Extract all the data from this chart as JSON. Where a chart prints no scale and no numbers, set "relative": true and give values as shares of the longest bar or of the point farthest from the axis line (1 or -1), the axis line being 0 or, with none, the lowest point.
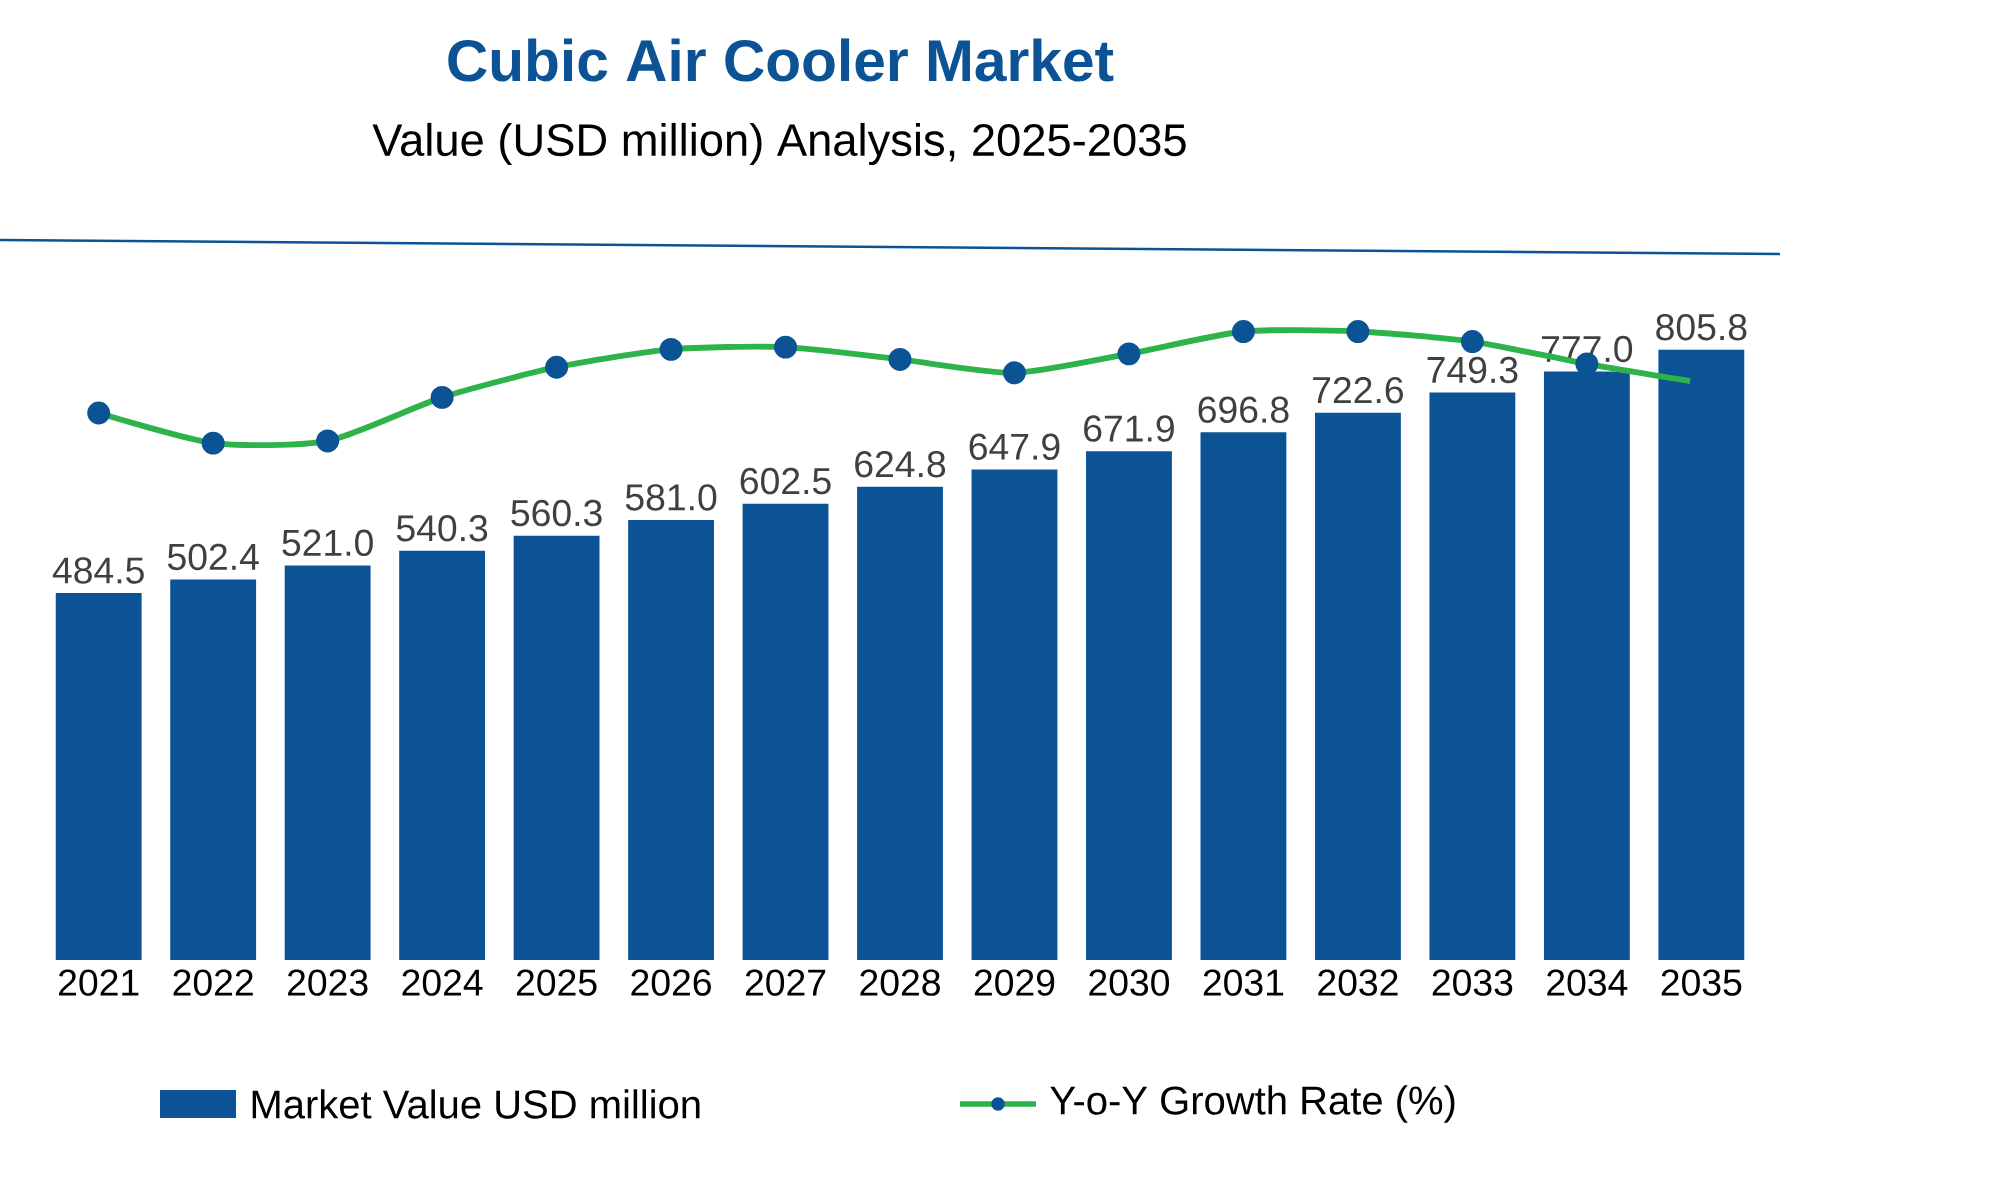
{
  "chart_data": [
    {
      "type": "bar",
      "title": "Cubic Air Cooler Market",
      "subtitle": "Value (USD million) Analysis, 2025-2035",
      "categories": [
        "2021",
        "2022",
        "2023",
        "2024",
        "2025",
        "2026",
        "2027",
        "2028",
        "2029",
        "2030",
        "2031",
        "2032",
        "2033",
        "2034",
        "2035"
      ],
      "series": [
        {
          "name": "Market Value USD million",
          "color": "#0b5394",
          "values": [
            484.5,
            502.4,
            521.0,
            540.3,
            560.3,
            581.0,
            602.5,
            624.8,
            647.9,
            671.9,
            696.8,
            722.6,
            749.3,
            777.0,
            805.8
          ],
          "value_labels": [
            "484.5",
            "502.4",
            "521.0",
            "540.3",
            "560.3",
            "581.0",
            "602.5",
            "624.8",
            "647.9",
            "671.9",
            "696.8",
            "722.6",
            "749.3",
            "777.0",
            "805.8"
          ]
        }
      ],
      "legend": "bottom",
      "tick_labels": "x"
    },
    {
      "type": "line",
      "relative": true,
      "marker": "circle",
      "legend": "bottom",
      "tick_labels": false,
      "categories": [
        null,
        null,
        null,
        null,
        null,
        null,
        null,
        null,
        null,
        null,
        null,
        null,
        null,
        null,
        null
      ],
      "series": [
        {
          "name": "Y-o-Y Growth Rate (%)",
          "color": "#2db34a",
          "values": [
            0.27,
            0.0,
            0.02,
            0.41,
            0.68,
            0.84,
            0.86,
            0.75,
            0.63,
            0.8,
            1.0,
            1.0,
            0.91,
            0.71,
            0.54
          ]
        }
      ]
    }
  ]
}
